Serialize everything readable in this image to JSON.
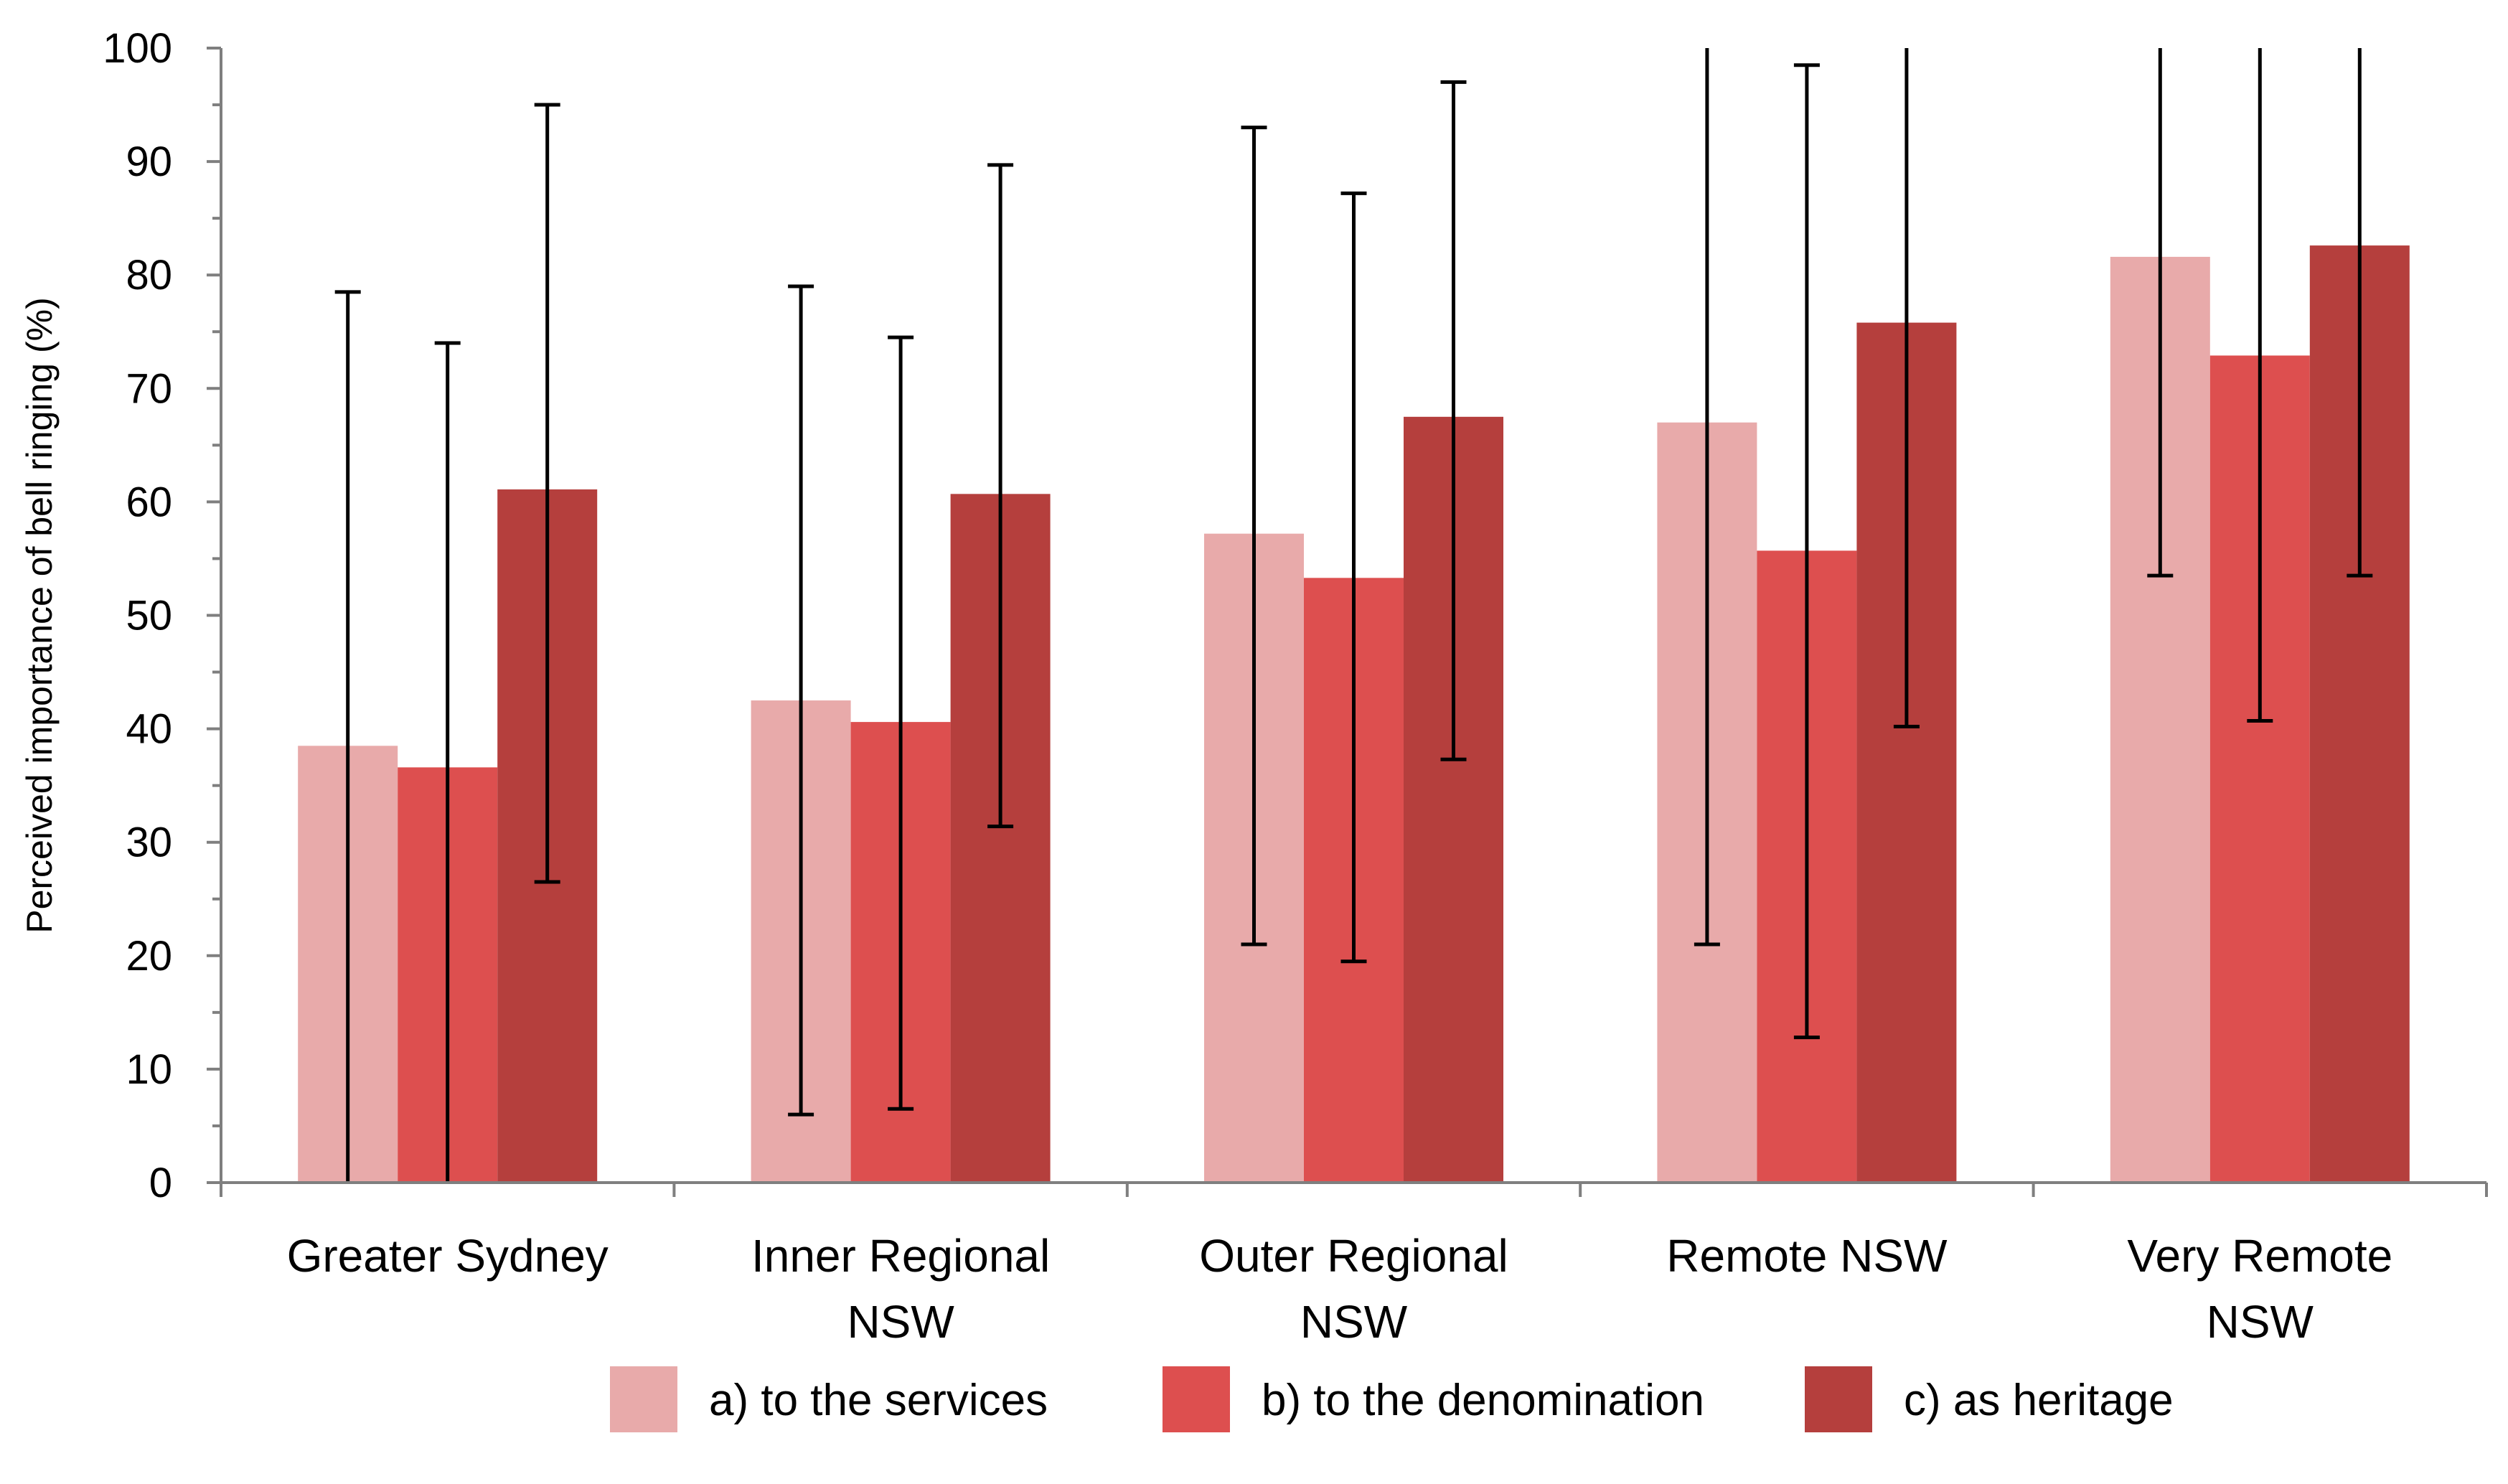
{
  "chart_data": {
    "type": "bar",
    "title": "",
    "xlabel": "",
    "ylabel": "Perceived importance of bell ringing (%)",
    "ylim": [
      0,
      100
    ],
    "yticks": [
      "0",
      "10",
      "20",
      "30",
      "40",
      "50",
      "60",
      "70",
      "80",
      "90",
      "100"
    ],
    "grid": false,
    "legend_position": "bottom",
    "categories": [
      [
        "Greater Sydney"
      ],
      [
        "Inner Regional",
        "NSW"
      ],
      [
        "Outer Regional",
        "NSW"
      ],
      [
        "Remote NSW"
      ],
      [
        "Very Remote",
        "NSW"
      ]
    ],
    "series": [
      {
        "name": "a) to the services",
        "color": "#E8AAAA",
        "values": [
          38.5,
          42.5,
          57.2,
          67.0,
          81.6
        ],
        "error_low": [
          0,
          6,
          21,
          21,
          53.5
        ],
        "error_high": [
          78.5,
          79,
          93,
          100,
          100
        ]
      },
      {
        "name": "b) to the denomination",
        "color": "#DD4F4F",
        "values": [
          36.6,
          40.6,
          53.3,
          55.7,
          72.9
        ],
        "error_low": [
          0,
          6.5,
          19.5,
          12.8,
          40.7
        ],
        "error_high": [
          74,
          74.5,
          87.2,
          98.5,
          100
        ]
      },
      {
        "name": "c) as heritage",
        "color": "#B53F3D",
        "values": [
          61.1,
          60.7,
          67.5,
          75.8,
          82.6
        ],
        "error_low": [
          26.5,
          31.4,
          37.3,
          40.2,
          53.5
        ],
        "error_high": [
          95,
          89.7,
          97,
          100,
          100
        ]
      }
    ]
  }
}
